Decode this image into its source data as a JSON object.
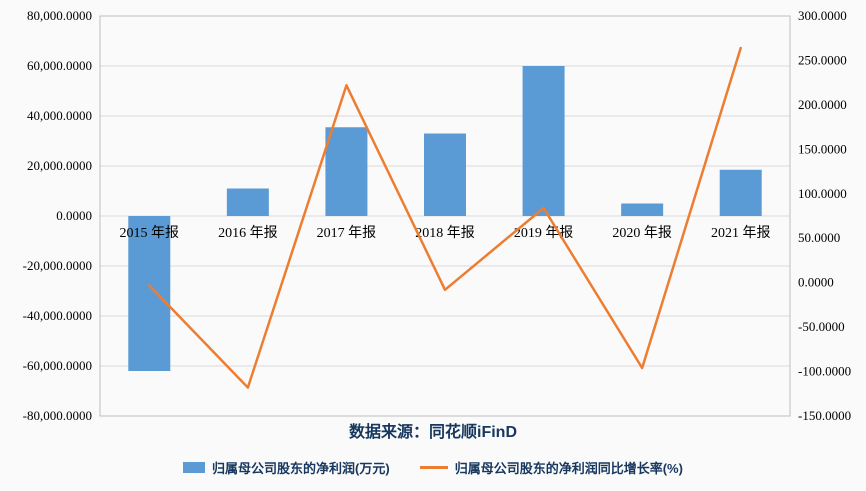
{
  "colors": {
    "bar": "#5B9BD5",
    "line": "#ED7D31",
    "accent_text": "#17375E",
    "grid": "#D9D9D9"
  },
  "source_note": "数据来源：同花顺iFinD",
  "legend": {
    "bar_label": "归属母公司股东的净利润(万元)",
    "line_label": "归属母公司股东的净利润同比增长率(%)"
  },
  "chart_data": {
    "type": "combo-bar-line",
    "categories": [
      "2015 年报",
      "2016 年报",
      "2017 年报",
      "2018 年报",
      "2019 年报",
      "2020 年报",
      "2021 年报"
    ],
    "series": [
      {
        "name": "归属母公司股东的净利润(万元)",
        "type": "bar",
        "axis": "left",
        "color": "#5B9BD5",
        "values": [
          -62000,
          11000,
          35500,
          33000,
          60000,
          5000,
          18500
        ]
      },
      {
        "name": "归属母公司股东的净利润同比增长率(%)",
        "type": "line",
        "axis": "right",
        "color": "#ED7D31",
        "values": [
          -3,
          -118,
          222,
          -8,
          84,
          -96,
          264
        ]
      }
    ],
    "left_axis": {
      "min": -80000,
      "max": 80000,
      "step": 20000,
      "tick_labels": [
        "80,000.0000",
        "60,000.0000",
        "40,000.0000",
        "20,000.0000",
        "0.0000",
        "-20,000.0000",
        "-40,000.0000",
        "-60,000.0000",
        "-80,000.0000"
      ]
    },
    "right_axis": {
      "min": -150,
      "max": 300,
      "step": 50,
      "tick_labels": [
        "300.0000",
        "250.0000",
        "200.0000",
        "150.0000",
        "100.0000",
        "50.0000",
        "0.0000",
        "-50.0000",
        "-100.0000",
        "-150.0000"
      ]
    },
    "grid": true,
    "legend_position": "bottom"
  }
}
